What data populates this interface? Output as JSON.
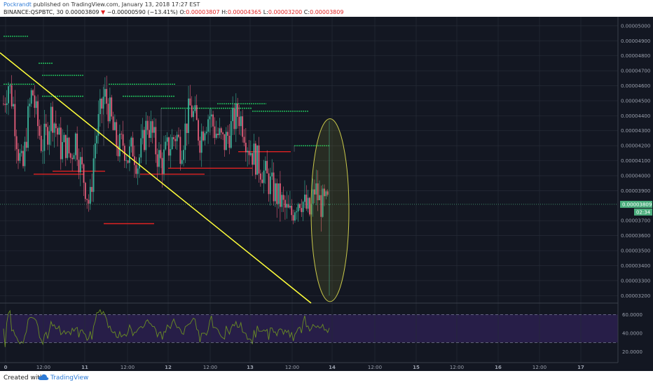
{
  "header": {
    "author": "Pockrandt",
    "published": " published on TradingView.com, January 13, 2018 17:27 EST",
    "symbol": "BINANCE:QSPBTC, 30",
    "last": "0.00003809",
    "change_arrow": "▼",
    "change": "−0.00000590 (−13.41%)",
    "open_label": "O:",
    "open": "0.00003807",
    "high_label": "H:",
    "high": "0.00004365",
    "low_label": "L:",
    "low": "0.00003200",
    "close_label": "C:",
    "close": "0.00003809"
  },
  "price_axis": {
    "ticks": [
      "0.00005000",
      "0.00004900",
      "0.00004800",
      "0.00004700",
      "0.00004600",
      "0.00004500",
      "0.00004400",
      "0.00004300",
      "0.00004200",
      "0.00004100",
      "0.00004000",
      "0.00003900",
      "0.00003700",
      "0.00003600",
      "0.00003500",
      "0.00003400",
      "0.00003300",
      "0.00003200"
    ],
    "current_price": "0.00003809",
    "countdown": "02:34"
  },
  "rsi_axis": {
    "ticks": [
      "60.0000",
      "40.0000",
      "20.0000"
    ]
  },
  "time_axis": {
    "labels": [
      "0",
      "12:00",
      "11",
      "12:00",
      "12",
      "12:00",
      "13",
      "12:00",
      "14",
      "12:00",
      "15",
      "12:00",
      "16",
      "12:00",
      "17"
    ]
  },
  "footer": {
    "created": "Created with",
    "brand": "TradingView"
  },
  "colors": {
    "chart_bg": "#131722",
    "rsi_band": "#2a1f4d",
    "up": "#3bb39a",
    "down": "#e35d79",
    "trendline": "#ffff3a",
    "ellipse": "#c9c84a",
    "resistance": "#22c55e",
    "support": "#e02222",
    "rsi_line": "#6b8e23",
    "price_tag": "#4caf7e"
  },
  "chart_data": {
    "type": "candlestick",
    "title": "BINANCE:QSPBTC, 30",
    "ylim": [
      3.15e-05,
      5.06e-05
    ],
    "y_ticks": [
      5e-05,
      4.9e-05,
      4.8e-05,
      4.7e-05,
      4.6e-05,
      4.5e-05,
      4.4e-05,
      4.3e-05,
      4.2e-05,
      4.1e-05,
      4e-05,
      3.9e-05,
      3.7e-05,
      3.6e-05,
      3.5e-05,
      3.4e-05,
      3.3e-05,
      3.2e-05
    ],
    "ohlc_last": {
      "open": 3.807e-05,
      "high": 4.365e-05,
      "low": 3.2e-05,
      "close": 3.809e-05
    },
    "price_path": [
      4.48e-05,
      4.62e-05,
      4.48e-05,
      4.18e-05,
      4.02e-05,
      4.35e-05,
      4.58e-05,
      4.36e-05,
      4.2e-05,
      4.28e-05,
      4.42e-05,
      4.32e-05,
      4.18e-05,
      4.21e-05,
      4.12e-05,
      4.26e-05,
      4.08e-05,
      3.95e-05,
      3.79e-05,
      4.2e-05,
      4.38e-05,
      4.54e-05,
      4.45e-05,
      4.28e-05,
      4.18e-05,
      4.22e-05,
      4.12e-05,
      4.19e-05,
      4.08e-05,
      4.2e-05,
      4.36e-05,
      4.28e-05,
      4.15e-05,
      4.08e-05,
      4.16e-05,
      4.22e-05,
      4.28e-05,
      4.18e-05,
      4.32e-05,
      4.46e-05,
      4.37e-05,
      4.25e-05,
      4.36e-05,
      4.41e-05,
      4.31e-05,
      4.26e-05,
      4.21e-05,
      4.28e-05,
      4.36e-05,
      4.42e-05,
      4.34e-05,
      4.21e-05,
      4.15e-05,
      4.09e-05,
      4.04e-05,
      3.98e-05,
      3.92e-05,
      3.87e-05,
      3.82e-05,
      3.76e-05,
      3.73e-05,
      3.83e-05,
      3.86e-05,
      3.79e-05,
      3.74e-05,
      3.92e-05,
      3.82e-05,
      3.8e-05,
      3.81e-05
    ],
    "support_levels": [
      4.01e-05,
      4.03e-05,
      3.68e-05,
      4.01e-05,
      4.05e-05,
      4.16e-05
    ],
    "resistance_levels": [
      4.93e-05,
      4.75e-05,
      4.67e-05,
      4.61e-05,
      4.53e-05,
      4.47e-05,
      4.45e-05,
      4.2e-05
    ],
    "trendline": {
      "from": 4.82e-05,
      "to": 3.15e-05
    },
    "rsi": {
      "ylim": [
        10,
        70
      ],
      "overbought": 60,
      "oversold": 30
    }
  }
}
